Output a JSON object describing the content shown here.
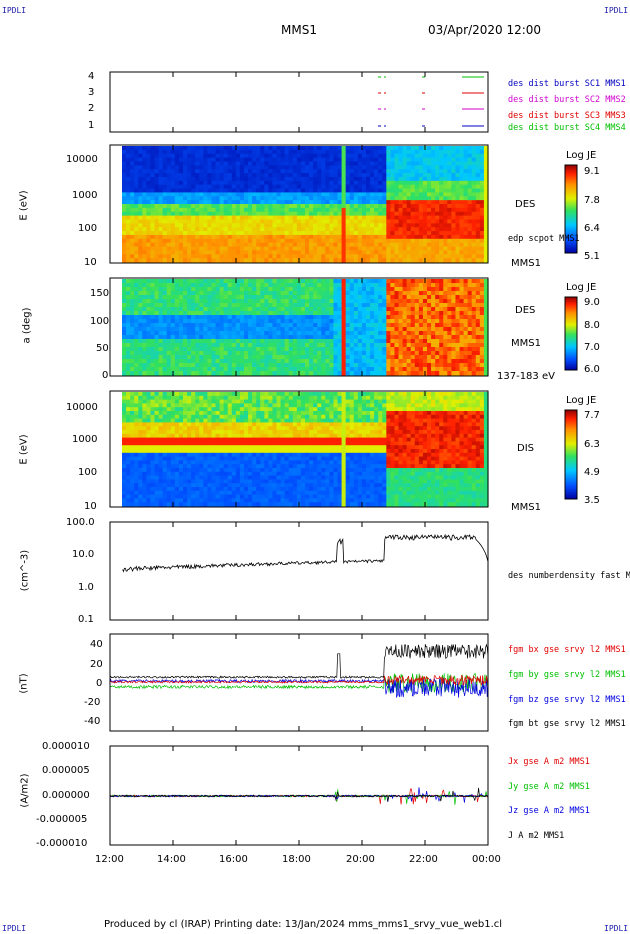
{
  "header": {
    "left_corner": "IPDLI",
    "right_corner": "IPDLI",
    "title": "MMS1",
    "datetime": "03/Apr/2020 12:00"
  },
  "footer": {
    "text": "Produced by cl (IRAP)   Printing date: 13/Jan/2024   mms_mms1_srvy_vue_web1.cl",
    "left_corner": "IPDLI",
    "right_corner": "IPDLI"
  },
  "colors": {
    "mms1": "#00c000",
    "mms2": "#d000d0",
    "mms3": "#e00000",
    "mms4": "#0000c0",
    "bx": "#e00000",
    "by": "#00c000",
    "bz": "#0000e0",
    "bt": "#000000"
  },
  "chart_data": [
    {
      "type": "line",
      "panel": "data-availability",
      "yticks": [
        "4",
        "3",
        "2",
        "1"
      ],
      "legend": [
        {
          "name": "des dist burst SC1 MMS1",
          "color": "#0000c0"
        },
        {
          "name": "des dist burst SC2 MMS2",
          "color": "#d000d0"
        },
        {
          "name": "des dist burst SC3 MMS3",
          "color": "#e00000"
        },
        {
          "name": "des dist burst SC4 MMS4",
          "color": "#00c000"
        }
      ]
    },
    {
      "type": "heatmap",
      "panel": "des-energy",
      "ylabel": "E (eV)",
      "yticks": [
        "10000",
        "1000",
        "100",
        "10"
      ],
      "side_labels": [
        "DES",
        "edp scpot MMS1",
        "MMS1"
      ],
      "colorbar_title": "Log JE",
      "colorbar_ticks": [
        "9.1",
        "7.8",
        "6.4",
        "5.1"
      ]
    },
    {
      "type": "heatmap",
      "panel": "des-pitch",
      "ylabel": "a (deg)",
      "yticks": [
        "150",
        "100",
        "50",
        "0"
      ],
      "side_labels": [
        "DES",
        "MMS1",
        "137-183 eV"
      ],
      "colorbar_title": "Log JE",
      "colorbar_ticks": [
        "9.0",
        "8.0",
        "7.0",
        "6.0"
      ]
    },
    {
      "type": "heatmap",
      "panel": "dis-energy",
      "ylabel": "E (eV)",
      "yticks": [
        "10000",
        "1000",
        "100",
        "10"
      ],
      "side_labels": [
        "DIS",
        "MMS1"
      ],
      "colorbar_title": "Log JE",
      "colorbar_ticks": [
        "7.7",
        "6.3",
        "4.9",
        "3.5"
      ]
    },
    {
      "type": "line",
      "panel": "density",
      "ylabel": "(cm^-3)",
      "yticks": [
        "100.0",
        "10.0",
        "1.0",
        "0.1"
      ],
      "series": [
        {
          "name": "des numberdensity fast M",
          "color": "#000000"
        }
      ]
    },
    {
      "type": "line",
      "panel": "magnetic-field",
      "ylabel": "(nT)",
      "yticks": [
        "40",
        "20",
        "0",
        "-20",
        "-40"
      ],
      "series": [
        {
          "name": "fgm bx gse srvy l2 MMS1",
          "color": "#e00000"
        },
        {
          "name": "fgm by gse srvy l2 MMS1",
          "color": "#00c000"
        },
        {
          "name": "fgm bz gse srvy l2 MMS1",
          "color": "#0000e0"
        },
        {
          "name": "fgm bt gse srvy l2 MMS1",
          "color": "#000000"
        }
      ]
    },
    {
      "type": "line",
      "panel": "current-density",
      "ylabel": "(A/m2)",
      "yticks": [
        "0.000010",
        "0.000005",
        "0.000000",
        "-0.000005",
        "-0.000010"
      ],
      "series": [
        {
          "name": "Jx gse A m2 MMS1",
          "color": "#e00000"
        },
        {
          "name": "Jy gse A m2 MMS1",
          "color": "#00c000"
        },
        {
          "name": "Jz gse A m2 MMS1",
          "color": "#0000e0"
        },
        {
          "name": "J A m2 MMS1",
          "color": "#000000"
        }
      ]
    }
  ],
  "xaxis": {
    "ticks": [
      "12:00",
      "14:00",
      "16:00",
      "18:00",
      "20:00",
      "22:00",
      "00:00"
    ]
  }
}
